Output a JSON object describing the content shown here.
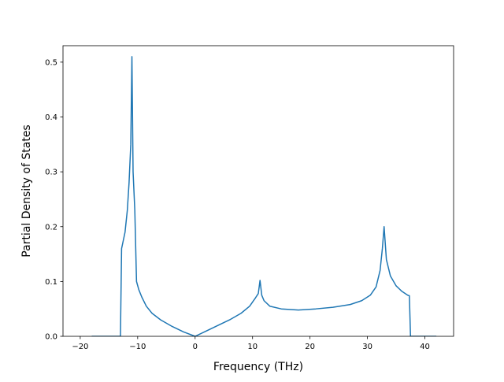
{
  "chart_data": {
    "type": "line",
    "title": "",
    "xlabel": "Frequency (THz)",
    "ylabel": "Partial Density of States",
    "xlim": [
      -23,
      45
    ],
    "ylim": [
      0.0,
      0.53
    ],
    "x_ticks": [
      -20,
      -10,
      0,
      10,
      20,
      30,
      40
    ],
    "x_tick_labels": [
      "−20",
      "−10",
      "0",
      "10",
      "20",
      "30",
      "40"
    ],
    "y_ticks": [
      0.0,
      0.1,
      0.2,
      0.3,
      0.4,
      0.5
    ],
    "y_tick_labels": [
      "0.0",
      "0.1",
      "0.2",
      "0.3",
      "0.4",
      "0.5"
    ],
    "grid": false,
    "series": [
      {
        "color": "#1f77b4",
        "x": [
          -18,
          -13,
          -12.8,
          -12.2,
          -11.8,
          -11.5,
          -11.2,
          -11.0,
          -10.8,
          -10.5,
          -10.2,
          -9.8,
          -9.3,
          -8.5,
          -7.5,
          -6,
          -4,
          -2,
          0,
          2,
          4,
          6,
          8,
          9.5,
          10.5,
          11.0,
          11.3,
          11.6,
          12,
          13,
          15,
          18,
          21,
          24,
          27,
          29,
          30.5,
          31.5,
          32.2,
          32.6,
          32.9,
          33.3,
          34,
          35,
          36,
          37,
          37.3,
          37.5,
          42
        ],
        "y": [
          0.0,
          0.0,
          0.16,
          0.19,
          0.23,
          0.28,
          0.35,
          0.51,
          0.3,
          0.23,
          0.1,
          0.085,
          0.072,
          0.055,
          0.042,
          0.03,
          0.018,
          0.008,
          0.0,
          0.01,
          0.02,
          0.03,
          0.042,
          0.055,
          0.07,
          0.078,
          0.102,
          0.075,
          0.065,
          0.055,
          0.05,
          0.048,
          0.05,
          0.053,
          0.058,
          0.065,
          0.075,
          0.09,
          0.12,
          0.16,
          0.2,
          0.14,
          0.11,
          0.092,
          0.082,
          0.075,
          0.074,
          0.0,
          0.0
        ]
      }
    ]
  }
}
